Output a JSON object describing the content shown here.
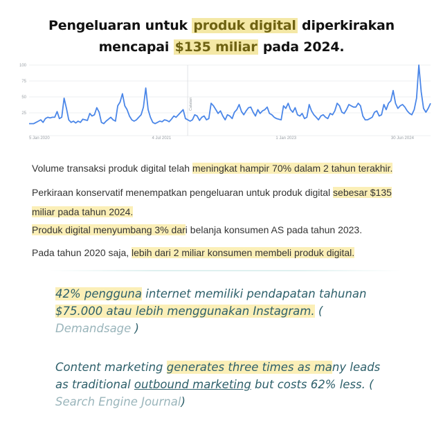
{
  "title": {
    "line1_a": "Pengeluaran untuk ",
    "line1_hl": "produk digital",
    "line1_b": " diperkirakan",
    "line2_a": "mencapai ",
    "line2_hl": "$135 miliar",
    "line2_b": " pada 2024."
  },
  "chart_data": {
    "type": "line",
    "title": "",
    "xlabel": "",
    "ylabel": "",
    "ylim": [
      0,
      100
    ],
    "yticks": [
      100,
      75,
      50,
      25
    ],
    "xtick_labels": [
      "5 Jan 2020",
      "4 Jul 2021",
      "1 Jan 2023",
      "30 Jun 2024"
    ],
    "annotation": "Catatan",
    "grid": true,
    "line_color": "#4a86e8",
    "series": [
      {
        "name": "",
        "values": [
          8,
          8,
          8,
          10,
          12,
          14,
          10,
          16,
          18,
          17,
          18,
          18,
          27,
          16,
          18,
          48,
          32,
          14,
          10,
          12,
          9,
          12,
          10,
          15,
          14,
          13,
          24,
          20,
          22,
          33,
          26,
          10,
          8,
          12,
          15,
          18,
          14,
          12,
          36,
          42,
          55,
          36,
          30,
          20,
          14,
          12,
          14,
          18,
          22,
          34,
          64,
          30,
          18,
          10,
          8,
          10,
          12,
          11,
          14,
          13,
          11,
          15,
          20,
          18,
          22,
          26,
          30,
          16,
          14,
          12,
          14,
          22,
          20,
          13,
          18,
          20,
          14,
          16,
          40,
          36,
          30,
          24,
          28,
          20,
          14,
          22,
          20,
          16,
          26,
          30,
          38,
          27,
          22,
          28,
          33,
          34,
          26,
          20,
          30,
          24,
          28,
          30,
          34,
          24,
          22,
          18,
          16,
          15,
          14,
          36,
          32,
          40,
          30,
          26,
          33,
          22,
          20,
          24,
          16,
          18,
          38,
          28,
          22,
          18,
          14,
          20,
          22,
          18,
          16,
          24,
          22,
          28,
          40,
          36,
          26,
          24,
          30,
          38,
          36,
          34,
          34,
          40,
          36,
          20,
          14,
          14,
          16,
          18,
          26,
          28,
          20,
          22,
          38,
          30,
          40,
          44,
          60,
          40,
          32,
          36,
          38,
          34,
          28,
          24,
          22,
          30,
          48,
          100,
          58,
          32,
          26,
          32,
          40
        ]
      }
    ]
  },
  "paragraphs": {
    "p1_a": "Volume transaksi produk digital telah ",
    "p1_hl": "meningkat hampir 70% dalam 2 tahun terakhir.",
    "p2_a": "Perkiraan konservatif menempatkan pengeluaran untuk produk digital ",
    "p2_hl1": "sebesar $135",
    "p2_hl2": "miliar pada tahun 2024.",
    "p3_hl": "Produk digital menyumbang 3% dar",
    "p3_b": "i belanja konsumen AS pada tahun 2023.",
    "p4_a": "Pada tahun 2020 saja, ",
    "p4_hl": "lebih dari 2 miliar konsumen membeli produk digital."
  },
  "quotes": {
    "q1_hl1": "42% pengguna",
    "q1_a": " internet memiliki pendapatan tahunan",
    "q1_hl2": "$75.000 atau lebih menggunakan Instagram.",
    "q1_b": " (",
    "q1_source": "Demandsage",
    "q1_c": " )",
    "q2_a": "Content marketing ",
    "q2_hl": "generates three times as ma",
    "q2_b": "ny leads",
    "q2_c": "as traditional ",
    "q2_ul": "outbound marketing",
    "q2_d": " but costs 62% less. (",
    "q2_source": "Search Engine Journal",
    "q2_e": ")"
  }
}
